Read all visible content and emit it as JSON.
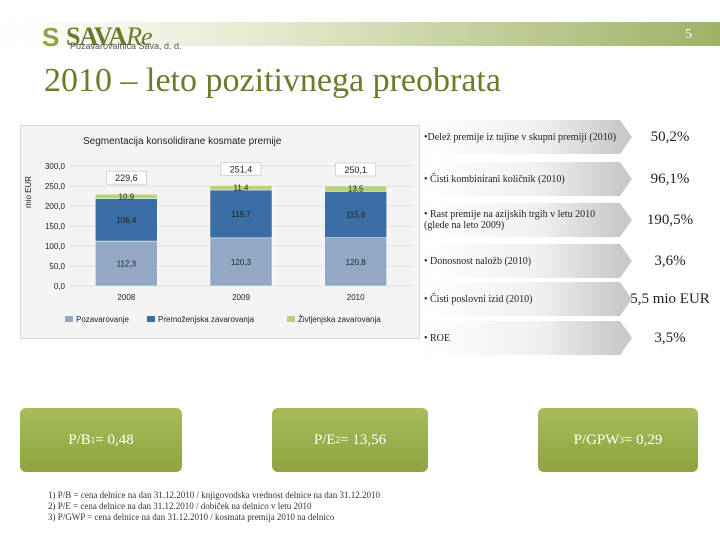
{
  "header": {
    "logo_main": "SAVA",
    "logo_re": "Re",
    "logo_subtitle": "Pozavarovalnica Sava, d. d.",
    "page_number": "5",
    "title": "2010 – leto pozitivnega preobrata"
  },
  "chart_data": {
    "type": "bar",
    "title": "Segmentacija konsolidirane kosmate premije",
    "ylabel": "mio EUR",
    "ylim": [
      0,
      300
    ],
    "yticks": [
      "0,0",
      "50,0",
      "100,0",
      "150,0",
      "200,0",
      "250,0",
      "300,0"
    ],
    "categories": [
      "2008",
      "2009",
      "2010"
    ],
    "series": [
      {
        "name": "Pozavarovanje",
        "values": [
          112.3,
          120.3,
          120.8
        ],
        "labels": [
          "112,3",
          "120,3",
          "120,8"
        ],
        "color": "#93a8c4"
      },
      {
        "name": "Premoženjska zavarovanja",
        "values": [
          106.4,
          119.7,
          115.8
        ],
        "labels": [
          "106,4",
          "119,7",
          "115,8"
        ],
        "color": "#3b6ea5"
      },
      {
        "name": "Življenjska zavarovanja",
        "values": [
          10.9,
          11.4,
          13.5
        ],
        "labels": [
          "10,9",
          "11,4",
          "13,5"
        ],
        "color": "#b9d27a"
      }
    ],
    "totals": [
      "229,6",
      "251,4",
      "250,1"
    ],
    "legend": [
      "Pozavarovanje",
      "Premoženjska zavarovanja",
      "Življenjska zavarovanja"
    ]
  },
  "kpis": [
    {
      "label": "•Delež premije iz tujine v skupni premiji (2010)",
      "value": "50,2%"
    },
    {
      "label": "• Čisti kombinirani količnik (2010)",
      "value": "96,1%"
    },
    {
      "label": "• Rast premije na azijskih trgih v letu 2010 (glede na leto 2009)",
      "value": "190,5%"
    },
    {
      "label": "• Donosnost naložb (2010)",
      "value": "3,6%"
    },
    {
      "label": "• Čisti poslovni izid (2010)",
      "value": "5,5 mio EUR"
    },
    {
      "label": "• ROE",
      "value": "3,5%"
    }
  ],
  "badges": {
    "pb": {
      "text": "P/B",
      "sup": "1",
      "value": " = 0,48"
    },
    "pe": {
      "text": "P/E",
      "sup": "2",
      "value": " = 13,56"
    },
    "pgwp": {
      "text": "P/GPW",
      "sup": "3",
      "value": " = 0,29"
    }
  },
  "footnotes": [
    "1)   P/B = cena delnice na dan 31.12.2010 / knjigovodska vrednost delnice na dan 31.12.2010",
    "2)   P/E = cena delnice na dan 31.12.2010 / dobiček na delnico v letu 2010",
    "3)   P/GWP = cena delnice na dan 31.12.2010 / kosmata premija 2010 na delnico"
  ]
}
